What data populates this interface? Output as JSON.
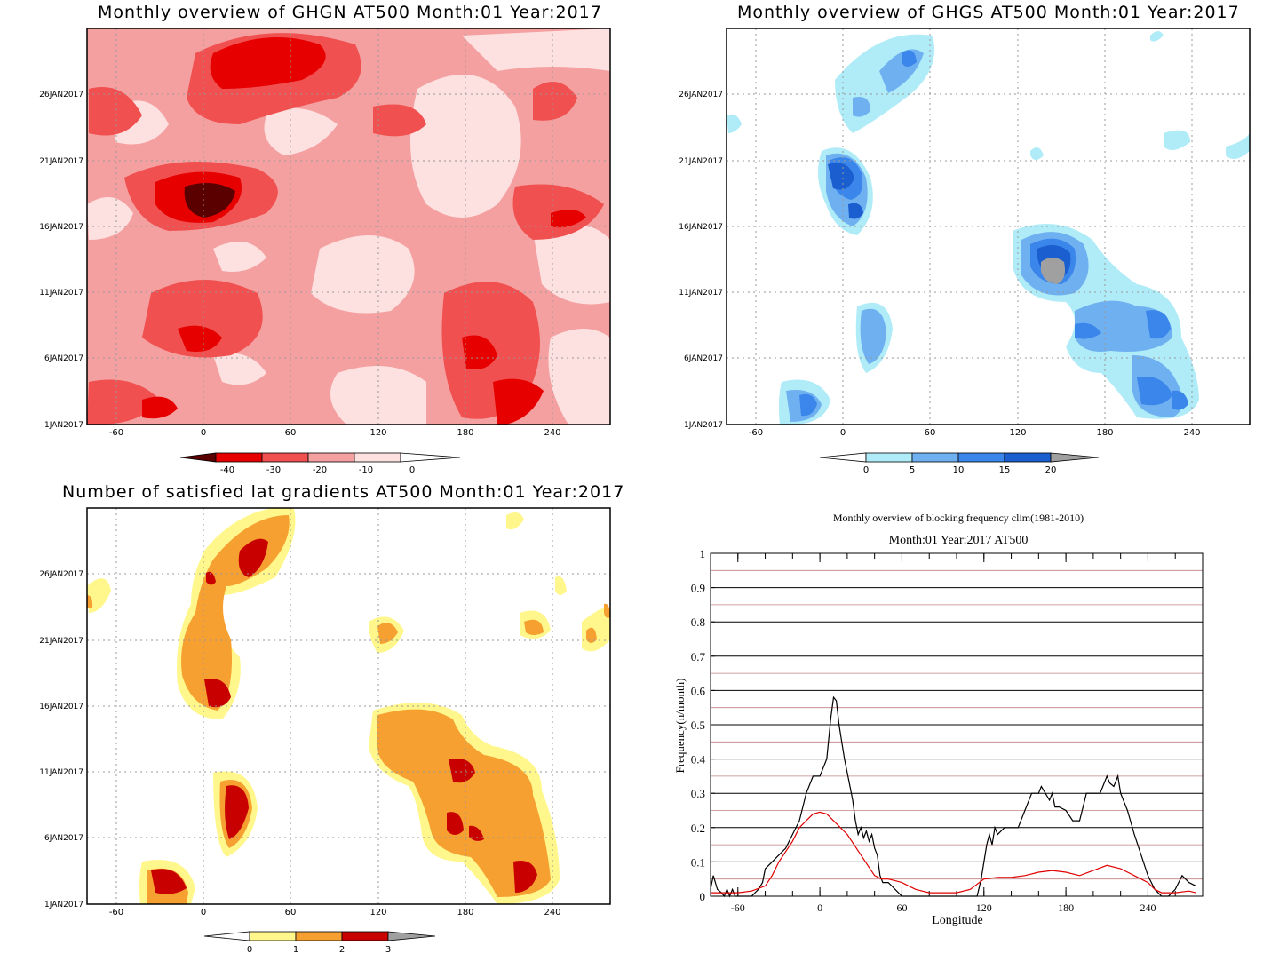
{
  "panels": {
    "ghgn": {
      "title": "Monthly overview of GHGN AT500 Month:01 Year:2017",
      "ylabels": [
        "26JAN2017",
        "21JAN2017",
        "16JAN2017",
        "11JAN2017",
        "6JAN2017",
        "1JAN2017"
      ],
      "xlabels": [
        "-60",
        "0",
        "60",
        "120",
        "180",
        "240"
      ],
      "colorbar": {
        "labels": [
          "-40",
          "-30",
          "-20",
          "-10",
          "0"
        ],
        "colors": [
          "#5a0000",
          "#e60000",
          "#f05050",
          "#f5a0a0",
          "#fde0e0"
        ]
      }
    },
    "ghgs": {
      "title": "Monthly overview of GHGS AT500 Month:01 Year:2017",
      "ylabels": [
        "26JAN2017",
        "21JAN2017",
        "16JAN2017",
        "11JAN2017",
        "6JAN2017",
        "1JAN2017"
      ],
      "xlabels": [
        "-60",
        "0",
        "60",
        "120",
        "180",
        "240"
      ],
      "colorbar": {
        "labels": [
          "0",
          "5",
          "10",
          "15",
          "20"
        ],
        "colors": [
          "#b0ecf8",
          "#6fb0f0",
          "#3a86ea",
          "#1a5ed0",
          "#a0a0a0"
        ]
      }
    },
    "grad": {
      "title": "Number of satisfied lat gradients AT500 Month:01 Year:2017",
      "ylabels": [
        "26JAN2017",
        "21JAN2017",
        "16JAN2017",
        "11JAN2017",
        "6JAN2017",
        "1JAN2017"
      ],
      "xlabels": [
        "-60",
        "0",
        "60",
        "120",
        "180",
        "240"
      ],
      "colorbar": {
        "labels": [
          "0",
          "1",
          "2",
          "3"
        ],
        "colors": [
          "#fff78c",
          "#f5a030",
          "#c80000",
          "#a0a0a0"
        ]
      }
    }
  },
  "chart_data": [
    {
      "type": "heatmap",
      "title": "Monthly overview of GHGN AT500 Month:01 Year:2017",
      "xlim": [
        -80,
        280
      ],
      "x_ticks": [
        -60,
        0,
        60,
        120,
        180,
        240
      ],
      "y_ticks": [
        "1JAN2017",
        "6JAN2017",
        "11JAN2017",
        "16JAN2017",
        "21JAN2017",
        "26JAN2017"
      ],
      "levels": [
        -40,
        -30,
        -20,
        -10,
        0
      ],
      "colors": {
        "lt_-40": "#5a0000",
        "-40_-30": "#e60000",
        "-30_-20": "#f05050",
        "-20_-10": "#f5a0a0",
        "-10_0": "#fde0e0"
      },
      "features": [
        {
          "lon": 10,
          "date": "18JAN2017",
          "value": -42
        },
        {
          "lon": 50,
          "date": "28JAN2017",
          "value": -35
        },
        {
          "lon": 235,
          "date": "3JAN2017",
          "value": -35
        },
        {
          "lon": 200,
          "date": "7JAN2017",
          "value": -35
        },
        {
          "lon": 0,
          "date": "7JAN2017",
          "value": -32
        },
        {
          "lon": 250,
          "date": "17JAN2017",
          "value": -30
        }
      ]
    },
    {
      "type": "heatmap",
      "title": "Monthly overview of GHGS AT500 Month:01 Year:2017",
      "xlim": [
        -80,
        280
      ],
      "x_ticks": [
        -60,
        0,
        60,
        120,
        180,
        240
      ],
      "y_ticks": [
        "1JAN2017",
        "6JAN2017",
        "11JAN2017",
        "16JAN2017",
        "21JAN2017",
        "26JAN2017"
      ],
      "levels": [
        0,
        5,
        10,
        15,
        20
      ],
      "colors": {
        "0_5": "#b0ecf8",
        "5_10": "#6fb0f0",
        "10_15": "#3a86ea",
        "15_20": "#1a5ed0",
        "gt_20": "#a0a0a0"
      },
      "features": [
        {
          "lon": 143,
          "date": "12JAN2017",
          "value": 22
        },
        {
          "lon": 5,
          "date": "19JAN2017",
          "value": 17
        },
        {
          "lon": 200,
          "date": "9JAN2017",
          "value": 14
        },
        {
          "lon": 210,
          "date": "3JAN2017",
          "value": 14
        },
        {
          "lon": -25,
          "date": "2JAN2017",
          "value": 12
        },
        {
          "lon": 25,
          "date": "7JAN2017",
          "value": 9
        },
        {
          "lon": 40,
          "date": "28JAN2017",
          "value": 10
        }
      ]
    },
    {
      "type": "heatmap",
      "title": "Number of satisfied lat gradients AT500 Month:01 Year:2017",
      "xlim": [
        -80,
        280
      ],
      "x_ticks": [
        -60,
        0,
        60,
        120,
        180,
        240
      ],
      "y_ticks": [
        "1JAN2017",
        "6JAN2017",
        "11JAN2017",
        "16JAN2017",
        "21JAN2017",
        "26JAN2017"
      ],
      "levels": [
        0,
        1,
        2,
        3
      ],
      "colors": {
        "0_1": "#fff78c",
        "1_2": "#f5a030",
        "2_3": "#c80000",
        "gt_3": "#a0a0a0"
      },
      "features": [
        {
          "lon": 5,
          "date": "18JAN2017",
          "value": 3
        },
        {
          "lon": 40,
          "date": "27JAN2017",
          "value": 3
        },
        {
          "lon": 20,
          "date": "8JAN2017",
          "value": 3
        },
        {
          "lon": -25,
          "date": "2JAN2017",
          "value": 3
        },
        {
          "lon": 175,
          "date": "11JAN2017",
          "value": 3
        },
        {
          "lon": 225,
          "date": "3JAN2017",
          "value": 3
        },
        {
          "lon": 140,
          "date": "13JAN2017",
          "value": 2
        }
      ]
    },
    {
      "type": "line",
      "title": "Monthly overview of blocking frequency clim(1981-2010)",
      "subtitle": "Month:01 Year:2017  AT500",
      "xlabel": "Longitude",
      "ylabel": "Frequency(n/month)",
      "xlim": [
        -80,
        280
      ],
      "ylim": [
        0,
        1
      ],
      "x_ticks": [
        -60,
        0,
        60,
        120,
        180,
        240
      ],
      "y_ticks": [
        0,
        0.1,
        0.2,
        0.3,
        0.4,
        0.5,
        0.6,
        0.7,
        0.8,
        0.9,
        1
      ],
      "grid": true,
      "series": [
        {
          "color": "#000000",
          "x": [
            -80,
            -78,
            -75,
            -72,
            -70,
            -68,
            -66,
            -64,
            -62,
            -60,
            -55,
            -50,
            -45,
            -42,
            -40,
            -35,
            -30,
            -25,
            -20,
            -15,
            -10,
            -5,
            0,
            5,
            8,
            10,
            12,
            14,
            16,
            18,
            20,
            22,
            24,
            26,
            28,
            30,
            32,
            34,
            36,
            38,
            40,
            42,
            44,
            46,
            50,
            55,
            60,
            62,
            65,
            70,
            80,
            90,
            100,
            110,
            115,
            118,
            120,
            122,
            124,
            126,
            128,
            130,
            135,
            140,
            145,
            150,
            155,
            160,
            162,
            165,
            168,
            170,
            172,
            175,
            180,
            185,
            190,
            195,
            200,
            205,
            210,
            212,
            215,
            218,
            220,
            225,
            230,
            235,
            240,
            245,
            250,
            255,
            260,
            265,
            270,
            275
          ],
          "y": [
            0.02,
            0.06,
            0.02,
            0.01,
            0.0,
            0.02,
            0.0,
            0.02,
            0.0,
            0.0,
            0.0,
            0.0,
            0.02,
            0.04,
            0.08,
            0.1,
            0.12,
            0.14,
            0.18,
            0.22,
            0.3,
            0.35,
            0.35,
            0.4,
            0.52,
            0.58,
            0.57,
            0.5,
            0.45,
            0.4,
            0.36,
            0.32,
            0.28,
            0.22,
            0.18,
            0.2,
            0.17,
            0.19,
            0.16,
            0.18,
            0.14,
            0.12,
            0.06,
            0.04,
            0.04,
            0.02,
            0.0,
            0.0,
            0.0,
            0.0,
            0.0,
            0.0,
            0.0,
            0.0,
            0.0,
            0.05,
            0.1,
            0.15,
            0.18,
            0.15,
            0.2,
            0.18,
            0.2,
            0.2,
            0.2,
            0.25,
            0.3,
            0.3,
            0.32,
            0.3,
            0.28,
            0.3,
            0.26,
            0.26,
            0.25,
            0.22,
            0.22,
            0.3,
            0.3,
            0.3,
            0.35,
            0.33,
            0.32,
            0.35,
            0.3,
            0.25,
            0.18,
            0.12,
            0.06,
            0.02,
            0.0,
            0.0,
            0.02,
            0.06,
            0.04,
            0.03
          ]
        },
        {
          "color": "#e00000",
          "x": [
            -80,
            -70,
            -60,
            -50,
            -40,
            -35,
            -30,
            -25,
            -20,
            -15,
            -10,
            -5,
            0,
            5,
            10,
            15,
            20,
            25,
            30,
            35,
            40,
            45,
            50,
            55,
            60,
            70,
            80,
            90,
            100,
            110,
            120,
            130,
            140,
            150,
            160,
            170,
            180,
            190,
            200,
            210,
            220,
            230,
            240,
            245,
            250,
            260,
            270,
            275
          ],
          "y": [
            0.01,
            0.01,
            0.01,
            0.015,
            0.03,
            0.06,
            0.1,
            0.13,
            0.16,
            0.2,
            0.22,
            0.24,
            0.245,
            0.24,
            0.22,
            0.2,
            0.18,
            0.15,
            0.12,
            0.09,
            0.06,
            0.05,
            0.05,
            0.045,
            0.04,
            0.02,
            0.01,
            0.01,
            0.01,
            0.02,
            0.05,
            0.055,
            0.055,
            0.06,
            0.07,
            0.075,
            0.07,
            0.06,
            0.075,
            0.09,
            0.08,
            0.06,
            0.04,
            0.02,
            0.01,
            0.01,
            0.015,
            0.01
          ]
        }
      ]
    }
  ]
}
